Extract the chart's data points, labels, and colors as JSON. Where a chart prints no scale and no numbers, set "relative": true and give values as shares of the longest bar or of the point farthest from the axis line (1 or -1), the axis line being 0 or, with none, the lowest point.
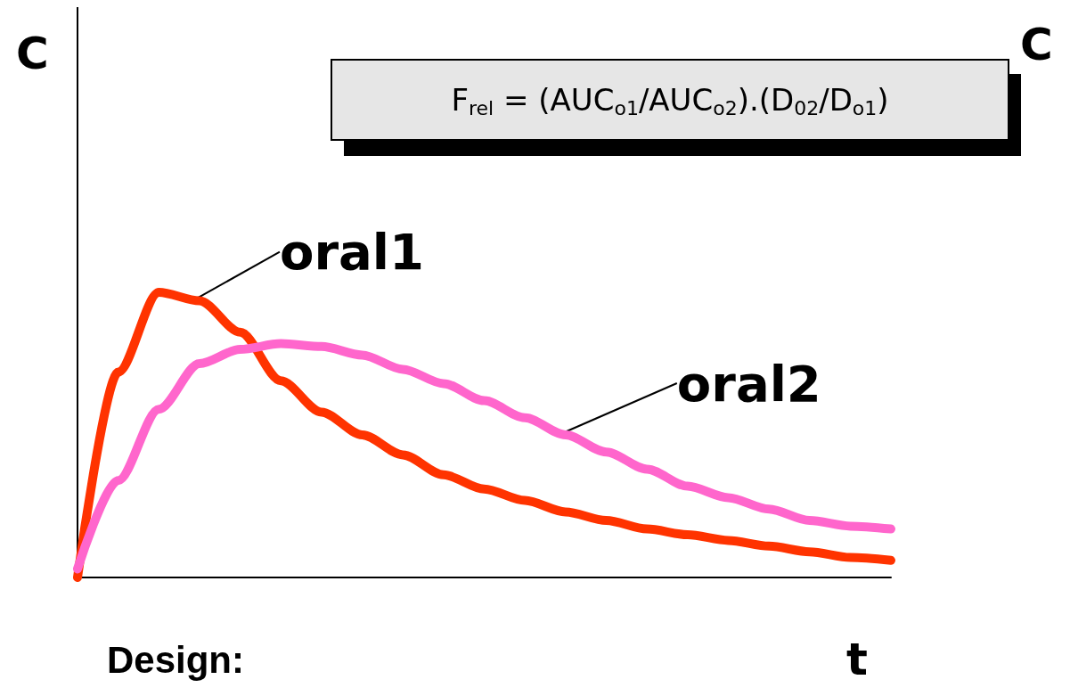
{
  "chart_data": {
    "type": "line",
    "relative": true,
    "xlabel": "t",
    "ylabel": "C",
    "categories": [
      null,
      null,
      null,
      null,
      null,
      null,
      null,
      null,
      null,
      null,
      null,
      null,
      null,
      null,
      null,
      null,
      null,
      null,
      null,
      null,
      null
    ],
    "series": [
      {
        "name": "oral1",
        "color": "#ff3300",
        "values": [
          0,
          0.72,
          1,
          0.97,
          0.86,
          0.69,
          0.58,
          0.5,
          0.43,
          0.36,
          0.31,
          0.27,
          0.23,
          0.2,
          0.17,
          0.15,
          0.13,
          0.11,
          0.09,
          0.07,
          0.06
        ]
      },
      {
        "name": "oral2",
        "color": "#ff66cc",
        "values": [
          0.03,
          0.34,
          0.59,
          0.75,
          0.8,
          0.82,
          0.81,
          0.78,
          0.73,
          0.68,
          0.62,
          0.56,
          0.5,
          0.44,
          0.38,
          0.32,
          0.28,
          0.24,
          0.2,
          0.18,
          0.17
        ]
      }
    ],
    "annotations": [
      "F$_{rel}$ = (AUC$_{o1}$/AUC$_{o2}$).(D$_{02}$/D$_{o1}$)",
      "Design:",
      "C"
    ],
    "legend": false,
    "grid": false,
    "line_style": "solid"
  }
}
